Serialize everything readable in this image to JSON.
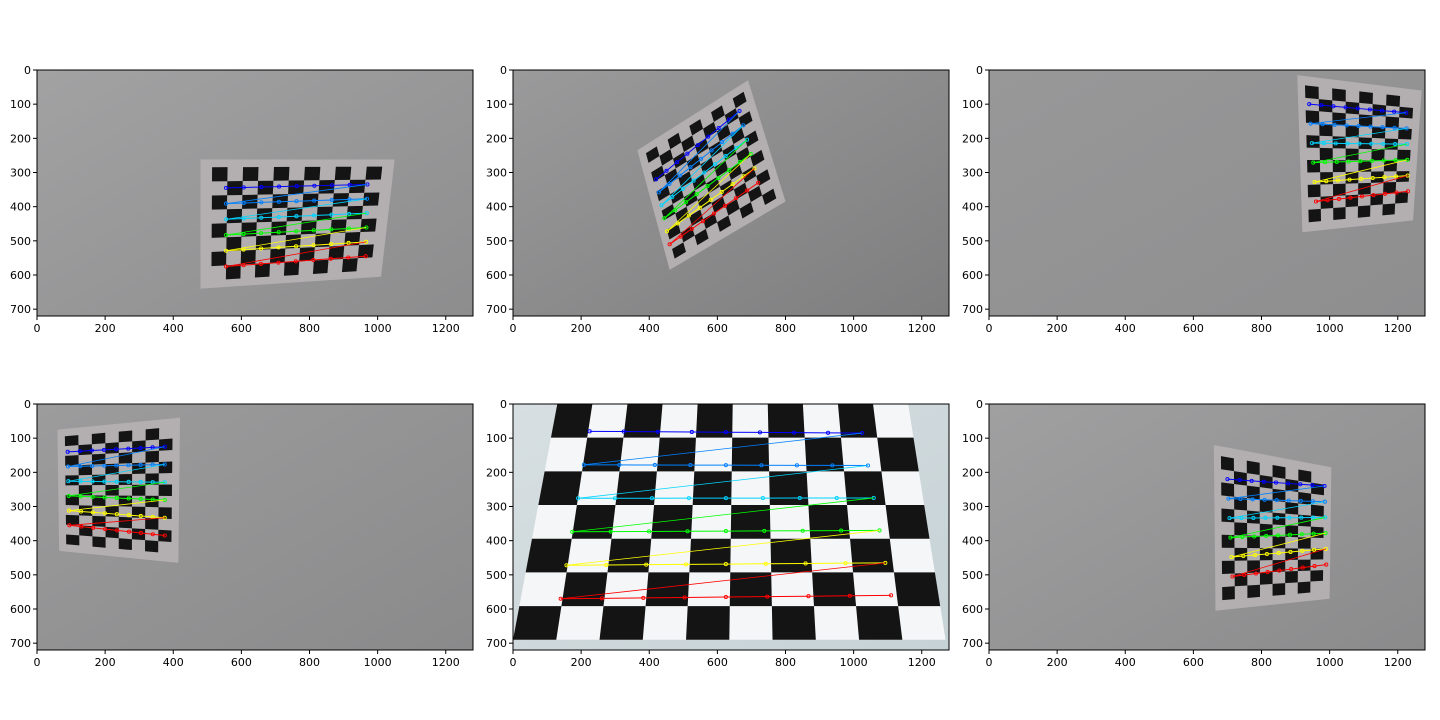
{
  "figure": {
    "x_ticks": [
      "0",
      "200",
      "400",
      "600",
      "800",
      "1000",
      "1200"
    ],
    "y_ticks": [
      "0",
      "100",
      "200",
      "300",
      "400",
      "500",
      "600",
      "700"
    ],
    "xlim": [
      0,
      1280
    ],
    "ylim": [
      720,
      0
    ],
    "corner_row_colors": [
      "#0000ff",
      "#0080ff",
      "#00d4ff",
      "#00ff00",
      "#ffff00",
      "#ff0000"
    ],
    "panels": [
      {
        "name": "panel-1",
        "background": "#8d8d8e",
        "background2": "#a2a2a3",
        "board": {
          "corners": [
            [
              480,
              262
            ],
            [
              1050,
              262
            ],
            [
              1010,
              605
            ],
            [
              480,
              640
            ]
          ],
          "cols": 11,
          "rows": 8
        },
        "grid": {
          "rows": 6,
          "cols": 9,
          "tl": [
            555,
            345
          ],
          "tr": [
            970,
            335
          ],
          "bl": [
            555,
            575
          ],
          "br": [
            965,
            545
          ]
        }
      },
      {
        "name": "panel-2",
        "background": "#7e7e7f",
        "background2": "#9a9a9b",
        "board": {
          "corners": [
            [
              365,
              235
            ],
            [
              690,
              30
            ],
            [
              800,
              385
            ],
            [
              460,
              585
            ]
          ],
          "cols": 9,
          "rows": 11
        },
        "grid": {
          "rows": 6,
          "cols": 9,
          "tl": [
            420,
            320
          ],
          "tr": [
            665,
            120
          ],
          "bl": [
            460,
            510
          ],
          "br": [
            720,
            330
          ]
        }
      },
      {
        "name": "panel-3",
        "background": "#8e8e8f",
        "background2": "#989899",
        "board": {
          "corners": [
            [
              905,
              15
            ],
            [
              1270,
              60
            ],
            [
              1245,
              440
            ],
            [
              920,
              475
            ]
          ],
          "cols": 8,
          "rows": 11
        },
        "grid": {
          "rows": 6,
          "cols": 9,
          "tl": [
            940,
            100
          ],
          "tr": [
            1225,
            125
          ],
          "bl": [
            960,
            385
          ],
          "br": [
            1230,
            355
          ]
        }
      },
      {
        "name": "panel-4",
        "background": "#8a8a8b",
        "background2": "#9c9c9d",
        "board": {
          "corners": [
            [
              60,
              75
            ],
            [
              420,
              40
            ],
            [
              415,
              465
            ],
            [
              65,
              430
            ]
          ],
          "cols": 8,
          "rows": 11
        },
        "grid": {
          "rows": 6,
          "cols": 9,
          "tl": [
            90,
            140
          ],
          "tr": [
            375,
            125
          ],
          "bl": [
            95,
            355
          ],
          "br": [
            375,
            385
          ]
        }
      },
      {
        "name": "panel-5",
        "background": "#c6d2d6",
        "background2": "#d7dfe2",
        "board": {
          "corners": [
            [
              130,
              0
            ],
            [
              1160,
              0
            ],
            [
              1270,
              690
            ],
            [
              0,
              690
            ]
          ],
          "cols": 10,
          "rows": 7
        },
        "grid": {
          "rows": 6,
          "cols": 9,
          "tl": [
            225,
            80
          ],
          "tr": [
            1025,
            85
          ],
          "bl": [
            140,
            570
          ],
          "br": [
            1110,
            560
          ]
        }
      },
      {
        "name": "panel-6",
        "background": "#8b8b8c",
        "background2": "#a0a0a1",
        "board": {
          "corners": [
            [
              660,
              120
            ],
            [
              1005,
              185
            ],
            [
              1000,
              570
            ],
            [
              665,
              605
            ]
          ],
          "cols": 8,
          "rows": 11
        },
        "grid": {
          "rows": 6,
          "cols": 9,
          "tl": [
            700,
            220
          ],
          "tr": [
            985,
            240
          ],
          "bl": [
            715,
            505
          ],
          "br": [
            990,
            470
          ]
        }
      }
    ]
  }
}
